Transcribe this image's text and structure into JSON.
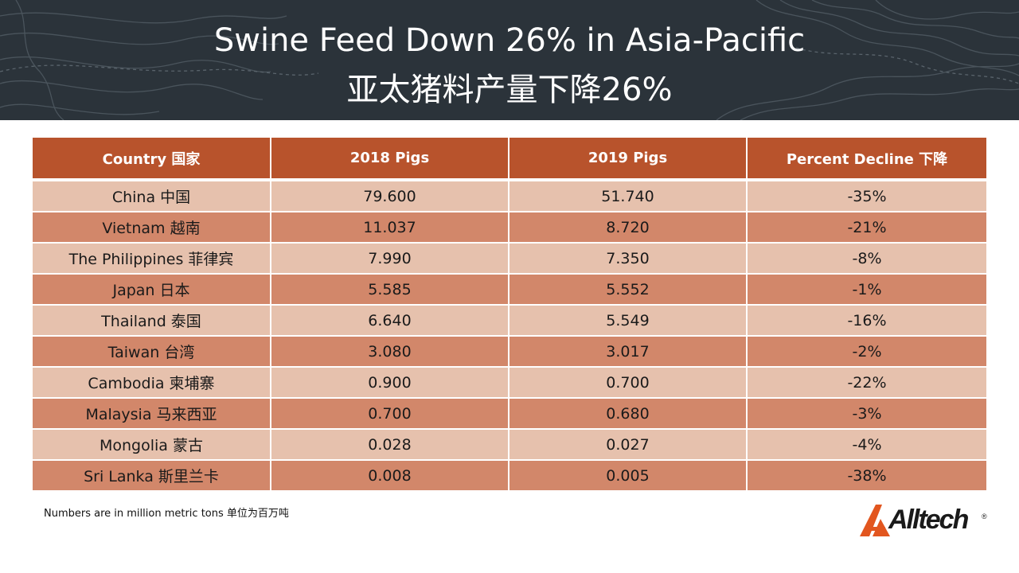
{
  "title": {
    "english": "Swine Feed Down 26% in Asia-Pacific",
    "chinese": "亚太猪料产量下降26%"
  },
  "table": {
    "headers": [
      "Country 国家",
      "2018 Pigs",
      "2019 Pigs",
      "Percent Decline 下降"
    ],
    "rows": [
      [
        "China 中国",
        "79.600",
        "51.740",
        "-35%"
      ],
      [
        "Vietnam 越南",
        "11.037",
        "8.720",
        "-21%"
      ],
      [
        "The Philippines 菲律宾",
        "7.990",
        "7.350",
        "-8%"
      ],
      [
        "Japan 日本",
        "5.585",
        "5.552",
        "-1%"
      ],
      [
        "Thailand 泰国",
        "6.640",
        "5.549",
        "-16%"
      ],
      [
        "Taiwan 台湾",
        "3.080",
        "3.017",
        "-2%"
      ],
      [
        "Cambodia 柬埔寨",
        "0.900",
        "0.700",
        "-22%"
      ],
      [
        "Malaysia 马来西亚",
        "0.700",
        "0.680",
        "-3%"
      ],
      [
        "Mongolia 蒙古",
        "0.028",
        "0.027",
        "-4%"
      ],
      [
        "Sri Lanka 斯里兰卡",
        "0.008",
        "0.005",
        "-38%"
      ]
    ]
  },
  "footnote": "Numbers are in million metric tons 单位为百万吨",
  "logo": {
    "text": "Alltech",
    "registered": "®"
  },
  "colors": {
    "header_bg": "#2b333a",
    "table_header": "#b8532c",
    "row_light": "#e6c1ad",
    "row_dark": "#d2876a",
    "logo_accent": "#e2561f"
  }
}
